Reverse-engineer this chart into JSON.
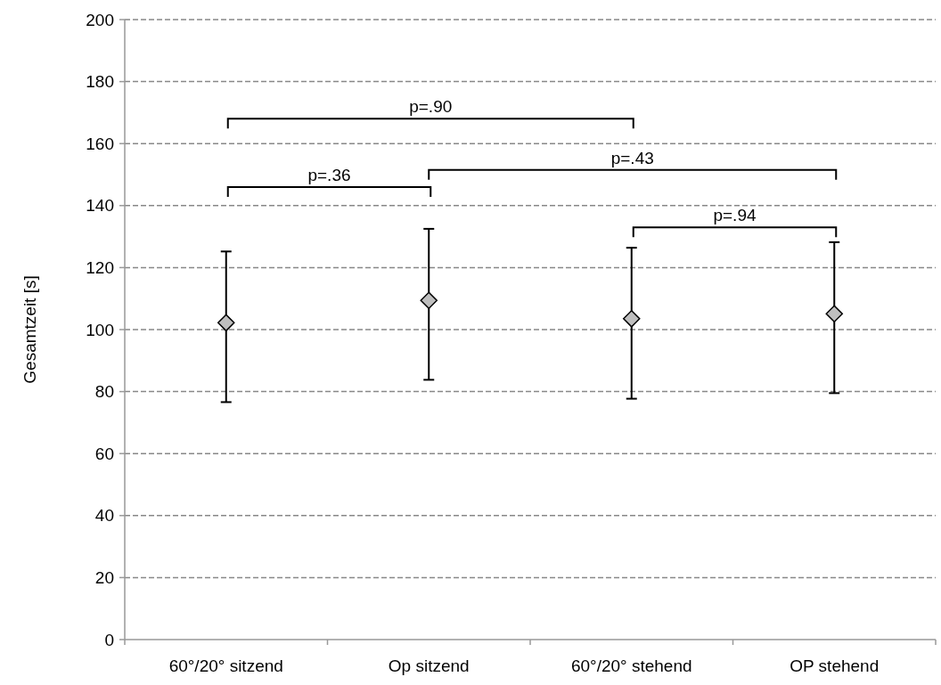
{
  "chart_data": {
    "type": "scatter",
    "ylabel": "Gesamtzeit [s]",
    "categories": [
      "60°/20° sitzend",
      "Op sitzend",
      "60°/20° stehend",
      "OP stehend"
    ],
    "values": [
      102.2,
      109.4,
      103.5,
      105.1
    ],
    "errors": [
      [
        76.6,
        125.2
      ],
      [
        83.8,
        132.5
      ],
      [
        77.7,
        126.4
      ],
      [
        79.5,
        128.2
      ]
    ],
    "color": "#bfbfbf",
    "marker": "diamond",
    "ylim": [
      0,
      200
    ],
    "yticks": [
      0,
      20,
      40,
      60,
      80,
      100,
      120,
      140,
      160,
      180,
      200
    ],
    "grid": "y",
    "annotations": [
      "p=.36",
      "p=.90",
      "p=.43",
      "p=.94"
    ]
  }
}
